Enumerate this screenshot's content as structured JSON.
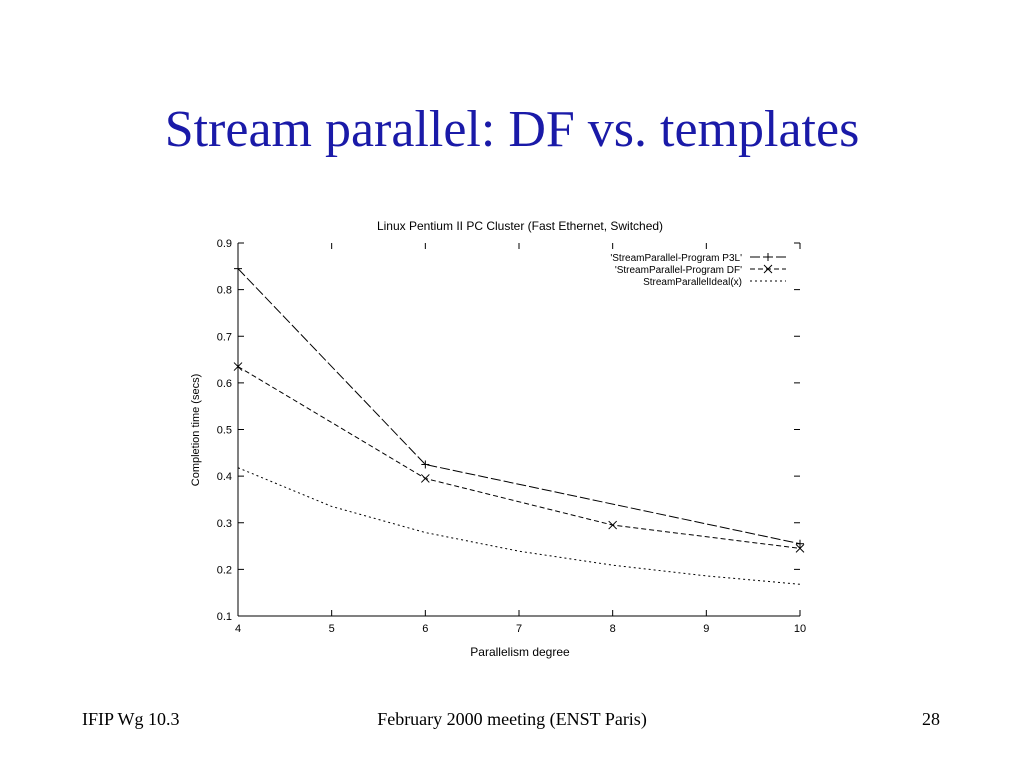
{
  "slide": {
    "title": "Stream parallel: DF vs. templates",
    "footer_left": "IFIP Wg 10.3",
    "footer_center": "February 2000 meeting (ENST Paris)",
    "footer_right": "28"
  },
  "chart_data": {
    "type": "line",
    "title": "Linux Pentium II PC Cluster (Fast Ethernet, Switched)",
    "xlabel": "Parallelism degree",
    "ylabel": "Completion time (secs)",
    "xlim": [
      4,
      10
    ],
    "ylim": [
      0.1,
      0.9
    ],
    "xticks": [
      4,
      5,
      6,
      7,
      8,
      9,
      10
    ],
    "yticks": [
      0.1,
      0.2,
      0.3,
      0.4,
      0.5,
      0.6,
      0.7,
      0.8,
      0.9
    ],
    "legend_position": "top-right",
    "grid": false,
    "series": [
      {
        "name": "'StreamParallel-Program P3L'",
        "marker": "+",
        "dash": "long",
        "x": [
          4,
          6,
          10
        ],
        "y": [
          0.845,
          0.425,
          0.255
        ]
      },
      {
        "name": "'StreamParallel-Program DF'",
        "marker": "x",
        "dash": "medium",
        "x": [
          4,
          6,
          8,
          10
        ],
        "y": [
          0.635,
          0.395,
          0.295,
          0.245
        ]
      },
      {
        "name": "StreamParallelIdeal(x)",
        "marker": "",
        "dash": "short",
        "x": [
          4,
          5,
          6,
          7,
          8,
          9,
          10
        ],
        "y": [
          0.418,
          0.335,
          0.279,
          0.239,
          0.209,
          0.186,
          0.168
        ]
      }
    ]
  }
}
